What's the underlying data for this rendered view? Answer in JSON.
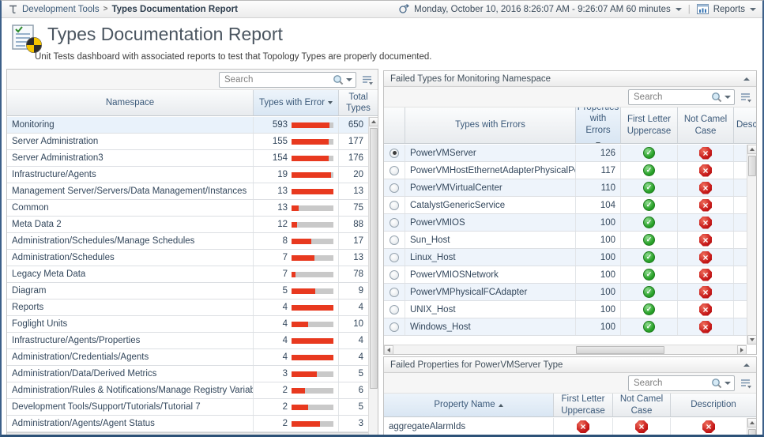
{
  "topbar": {
    "breadcrumb": {
      "item1": "Development Tools",
      "separator": ">",
      "item2": "Types Documentation Report"
    },
    "timerange_label": "Monday, October 10, 2016 8:26:07 AM - 9:26:07 AM 60 minutes",
    "reports_label": "Reports"
  },
  "header": {
    "title": "Types Documentation Report",
    "subtitle": "Unit Tests dashboard with associated reports to test that Topology Types are properly documented."
  },
  "namespace_panel": {
    "search_placeholder": "Search",
    "columns": {
      "namespace": "Namespace",
      "errors": "Types with Error",
      "total": "Total Types"
    },
    "sort": {
      "column": "Types with Error",
      "direction": "desc"
    },
    "rows": [
      {
        "namespace": "Monitoring",
        "errors": 593,
        "total": 650,
        "selected": true
      },
      {
        "namespace": "Server Administration",
        "errors": 155,
        "total": 177
      },
      {
        "namespace": "Server Administration3",
        "errors": 154,
        "total": 176
      },
      {
        "namespace": "Infrastructure/Agents",
        "errors": 19,
        "total": 20
      },
      {
        "namespace": "Management Server/Servers/Data Management/Instances",
        "errors": 13,
        "total": 13
      },
      {
        "namespace": "Common",
        "errors": 13,
        "total": 75
      },
      {
        "namespace": "Meta Data 2",
        "errors": 12,
        "total": 88
      },
      {
        "namespace": "Administration/Schedules/Manage Schedules",
        "errors": 8,
        "total": 17
      },
      {
        "namespace": "Administration/Schedules",
        "errors": 7,
        "total": 13
      },
      {
        "namespace": "Legacy Meta Data",
        "errors": 7,
        "total": 78
      },
      {
        "namespace": "Diagram",
        "errors": 5,
        "total": 9
      },
      {
        "namespace": "Reports",
        "errors": 4,
        "total": 4
      },
      {
        "namespace": "Foglight Units",
        "errors": 4,
        "total": 10
      },
      {
        "namespace": "Infrastructure/Agents/Properties",
        "errors": 4,
        "total": 4
      },
      {
        "namespace": "Administration/Credentials/Agents",
        "errors": 4,
        "total": 4
      },
      {
        "namespace": "Administration/Data/Derived Metrics",
        "errors": 3,
        "total": 5
      },
      {
        "namespace": "Administration/Rules & Notifications/Manage Registry Variables",
        "errors": 2,
        "total": 6
      },
      {
        "namespace": "Development Tools/Support/Tutorials/Tutorial 7",
        "errors": 2,
        "total": 5
      },
      {
        "namespace": "Administration/Agents/Agent Status",
        "errors": 2,
        "total": 3
      }
    ]
  },
  "failed_types_panel": {
    "title": "Failed Types for Monitoring Namespace",
    "search_placeholder": "Search",
    "columns": {
      "type": "Types with Errors",
      "props": "Properties with Errors",
      "first_letter": "First Letter Uppercase",
      "camel": "Not Camel Case",
      "description": "Description"
    },
    "sort": {
      "column": "Properties with Errors",
      "direction": "desc"
    },
    "rows": [
      {
        "type": "PowerVMServer",
        "properties_with_errors": 126,
        "first_letter_uppercase": "pass",
        "not_camel_case": "fail",
        "selected": true
      },
      {
        "type": "PowerVMHostEthernetAdapterPhysicalPort",
        "properties_with_errors": 117,
        "first_letter_uppercase": "pass",
        "not_camel_case": "fail"
      },
      {
        "type": "PowerVMVirtualCenter",
        "properties_with_errors": 110,
        "first_letter_uppercase": "pass",
        "not_camel_case": "fail"
      },
      {
        "type": "CatalystGenericService",
        "properties_with_errors": 104,
        "first_letter_uppercase": "pass",
        "not_camel_case": "fail"
      },
      {
        "type": "PowerVMIOS",
        "properties_with_errors": 100,
        "first_letter_uppercase": "pass",
        "not_camel_case": "fail"
      },
      {
        "type": "Sun_Host",
        "properties_with_errors": 100,
        "first_letter_uppercase": "pass",
        "not_camel_case": "fail"
      },
      {
        "type": "Linux_Host",
        "properties_with_errors": 100,
        "first_letter_uppercase": "pass",
        "not_camel_case": "fail"
      },
      {
        "type": "PowerVMIOSNetwork",
        "properties_with_errors": 100,
        "first_letter_uppercase": "pass",
        "not_camel_case": "fail"
      },
      {
        "type": "PowerVMPhysicalFCAdapter",
        "properties_with_errors": 100,
        "first_letter_uppercase": "pass",
        "not_camel_case": "fail"
      },
      {
        "type": "UNIX_Host",
        "properties_with_errors": 100,
        "first_letter_uppercase": "pass",
        "not_camel_case": "fail"
      },
      {
        "type": "Windows_Host",
        "properties_with_errors": 100,
        "first_letter_uppercase": "pass",
        "not_camel_case": "fail"
      }
    ]
  },
  "failed_properties_panel": {
    "title": "Failed Properties for PowerVMServer Type",
    "search_placeholder": "Search",
    "columns": {
      "property": "Property Name",
      "first_letter": "First Letter Uppercase",
      "camel": "Not Camel Case",
      "description": "Description"
    },
    "sort": {
      "column": "Property Name",
      "direction": "asc"
    },
    "rows": [
      {
        "property": "aggregateAlarmIds",
        "first_letter_uppercase": "fail",
        "not_camel_case": "fail",
        "description": "fail"
      }
    ]
  },
  "colors": {
    "accent_red": "#e8391f",
    "pass_green": "#2aa22a",
    "fail_red": "#c51717",
    "selection_blue": "#e9f2fb",
    "header_text": "#3c5a7a"
  }
}
